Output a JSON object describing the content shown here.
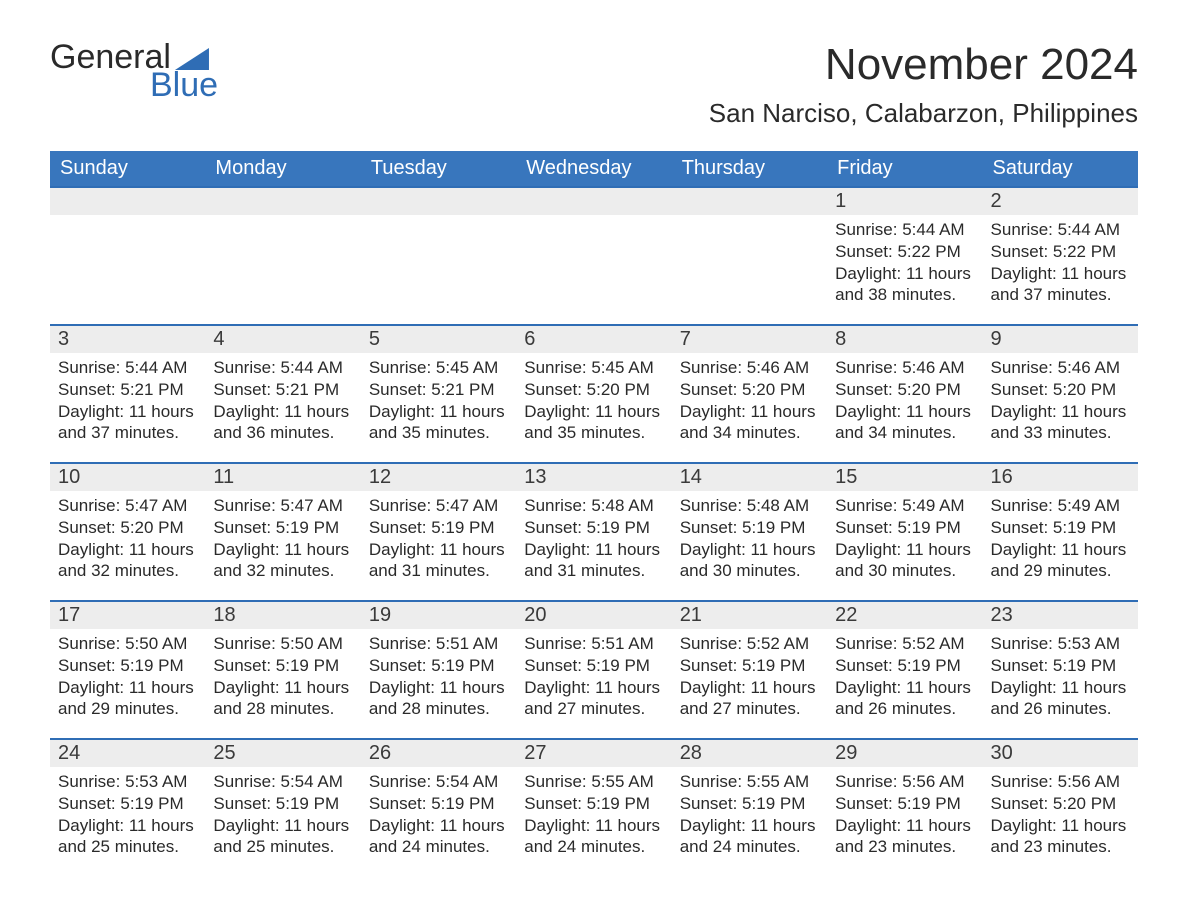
{
  "brand": {
    "word1": "General",
    "word2": "Blue"
  },
  "header": {
    "month_title": "November 2024",
    "location": "San Narciso, Calabarzon, Philippines"
  },
  "colors": {
    "header_blue": "#3876bd",
    "brand_blue": "#2f6db5",
    "day_bg": "#ededed",
    "row_border": "#2f6db5",
    "text_dark": "#333333",
    "background": "#ffffff"
  },
  "weekday_headers": [
    "Sunday",
    "Monday",
    "Tuesday",
    "Wednesday",
    "Thursday",
    "Friday",
    "Saturday"
  ],
  "weeks": [
    [
      {
        "empty": true
      },
      {
        "empty": true
      },
      {
        "empty": true
      },
      {
        "empty": true
      },
      {
        "empty": true
      },
      {
        "day": "1",
        "sunrise": "Sunrise: 5:44 AM",
        "sunset": "Sunset: 5:22 PM",
        "daylight1": "Daylight: 11 hours",
        "daylight2": "and 38 minutes."
      },
      {
        "day": "2",
        "sunrise": "Sunrise: 5:44 AM",
        "sunset": "Sunset: 5:22 PM",
        "daylight1": "Daylight: 11 hours",
        "daylight2": "and 37 minutes."
      }
    ],
    [
      {
        "day": "3",
        "sunrise": "Sunrise: 5:44 AM",
        "sunset": "Sunset: 5:21 PM",
        "daylight1": "Daylight: 11 hours",
        "daylight2": "and 37 minutes."
      },
      {
        "day": "4",
        "sunrise": "Sunrise: 5:44 AM",
        "sunset": "Sunset: 5:21 PM",
        "daylight1": "Daylight: 11 hours",
        "daylight2": "and 36 minutes."
      },
      {
        "day": "5",
        "sunrise": "Sunrise: 5:45 AM",
        "sunset": "Sunset: 5:21 PM",
        "daylight1": "Daylight: 11 hours",
        "daylight2": "and 35 minutes."
      },
      {
        "day": "6",
        "sunrise": "Sunrise: 5:45 AM",
        "sunset": "Sunset: 5:20 PM",
        "daylight1": "Daylight: 11 hours",
        "daylight2": "and 35 minutes."
      },
      {
        "day": "7",
        "sunrise": "Sunrise: 5:46 AM",
        "sunset": "Sunset: 5:20 PM",
        "daylight1": "Daylight: 11 hours",
        "daylight2": "and 34 minutes."
      },
      {
        "day": "8",
        "sunrise": "Sunrise: 5:46 AM",
        "sunset": "Sunset: 5:20 PM",
        "daylight1": "Daylight: 11 hours",
        "daylight2": "and 34 minutes."
      },
      {
        "day": "9",
        "sunrise": "Sunrise: 5:46 AM",
        "sunset": "Sunset: 5:20 PM",
        "daylight1": "Daylight: 11 hours",
        "daylight2": "and 33 minutes."
      }
    ],
    [
      {
        "day": "10",
        "sunrise": "Sunrise: 5:47 AM",
        "sunset": "Sunset: 5:20 PM",
        "daylight1": "Daylight: 11 hours",
        "daylight2": "and 32 minutes."
      },
      {
        "day": "11",
        "sunrise": "Sunrise: 5:47 AM",
        "sunset": "Sunset: 5:19 PM",
        "daylight1": "Daylight: 11 hours",
        "daylight2": "and 32 minutes."
      },
      {
        "day": "12",
        "sunrise": "Sunrise: 5:47 AM",
        "sunset": "Sunset: 5:19 PM",
        "daylight1": "Daylight: 11 hours",
        "daylight2": "and 31 minutes."
      },
      {
        "day": "13",
        "sunrise": "Sunrise: 5:48 AM",
        "sunset": "Sunset: 5:19 PM",
        "daylight1": "Daylight: 11 hours",
        "daylight2": "and 31 minutes."
      },
      {
        "day": "14",
        "sunrise": "Sunrise: 5:48 AM",
        "sunset": "Sunset: 5:19 PM",
        "daylight1": "Daylight: 11 hours",
        "daylight2": "and 30 minutes."
      },
      {
        "day": "15",
        "sunrise": "Sunrise: 5:49 AM",
        "sunset": "Sunset: 5:19 PM",
        "daylight1": "Daylight: 11 hours",
        "daylight2": "and 30 minutes."
      },
      {
        "day": "16",
        "sunrise": "Sunrise: 5:49 AM",
        "sunset": "Sunset: 5:19 PM",
        "daylight1": "Daylight: 11 hours",
        "daylight2": "and 29 minutes."
      }
    ],
    [
      {
        "day": "17",
        "sunrise": "Sunrise: 5:50 AM",
        "sunset": "Sunset: 5:19 PM",
        "daylight1": "Daylight: 11 hours",
        "daylight2": "and 29 minutes."
      },
      {
        "day": "18",
        "sunrise": "Sunrise: 5:50 AM",
        "sunset": "Sunset: 5:19 PM",
        "daylight1": "Daylight: 11 hours",
        "daylight2": "and 28 minutes."
      },
      {
        "day": "19",
        "sunrise": "Sunrise: 5:51 AM",
        "sunset": "Sunset: 5:19 PM",
        "daylight1": "Daylight: 11 hours",
        "daylight2": "and 28 minutes."
      },
      {
        "day": "20",
        "sunrise": "Sunrise: 5:51 AM",
        "sunset": "Sunset: 5:19 PM",
        "daylight1": "Daylight: 11 hours",
        "daylight2": "and 27 minutes."
      },
      {
        "day": "21",
        "sunrise": "Sunrise: 5:52 AM",
        "sunset": "Sunset: 5:19 PM",
        "daylight1": "Daylight: 11 hours",
        "daylight2": "and 27 minutes."
      },
      {
        "day": "22",
        "sunrise": "Sunrise: 5:52 AM",
        "sunset": "Sunset: 5:19 PM",
        "daylight1": "Daylight: 11 hours",
        "daylight2": "and 26 minutes."
      },
      {
        "day": "23",
        "sunrise": "Sunrise: 5:53 AM",
        "sunset": "Sunset: 5:19 PM",
        "daylight1": "Daylight: 11 hours",
        "daylight2": "and 26 minutes."
      }
    ],
    [
      {
        "day": "24",
        "sunrise": "Sunrise: 5:53 AM",
        "sunset": "Sunset: 5:19 PM",
        "daylight1": "Daylight: 11 hours",
        "daylight2": "and 25 minutes."
      },
      {
        "day": "25",
        "sunrise": "Sunrise: 5:54 AM",
        "sunset": "Sunset: 5:19 PM",
        "daylight1": "Daylight: 11 hours",
        "daylight2": "and 25 minutes."
      },
      {
        "day": "26",
        "sunrise": "Sunrise: 5:54 AM",
        "sunset": "Sunset: 5:19 PM",
        "daylight1": "Daylight: 11 hours",
        "daylight2": "and 24 minutes."
      },
      {
        "day": "27",
        "sunrise": "Sunrise: 5:55 AM",
        "sunset": "Sunset: 5:19 PM",
        "daylight1": "Daylight: 11 hours",
        "daylight2": "and 24 minutes."
      },
      {
        "day": "28",
        "sunrise": "Sunrise: 5:55 AM",
        "sunset": "Sunset: 5:19 PM",
        "daylight1": "Daylight: 11 hours",
        "daylight2": "and 24 minutes."
      },
      {
        "day": "29",
        "sunrise": "Sunrise: 5:56 AM",
        "sunset": "Sunset: 5:19 PM",
        "daylight1": "Daylight: 11 hours",
        "daylight2": "and 23 minutes."
      },
      {
        "day": "30",
        "sunrise": "Sunrise: 5:56 AM",
        "sunset": "Sunset: 5:20 PM",
        "daylight1": "Daylight: 11 hours",
        "daylight2": "and 23 minutes."
      }
    ]
  ]
}
